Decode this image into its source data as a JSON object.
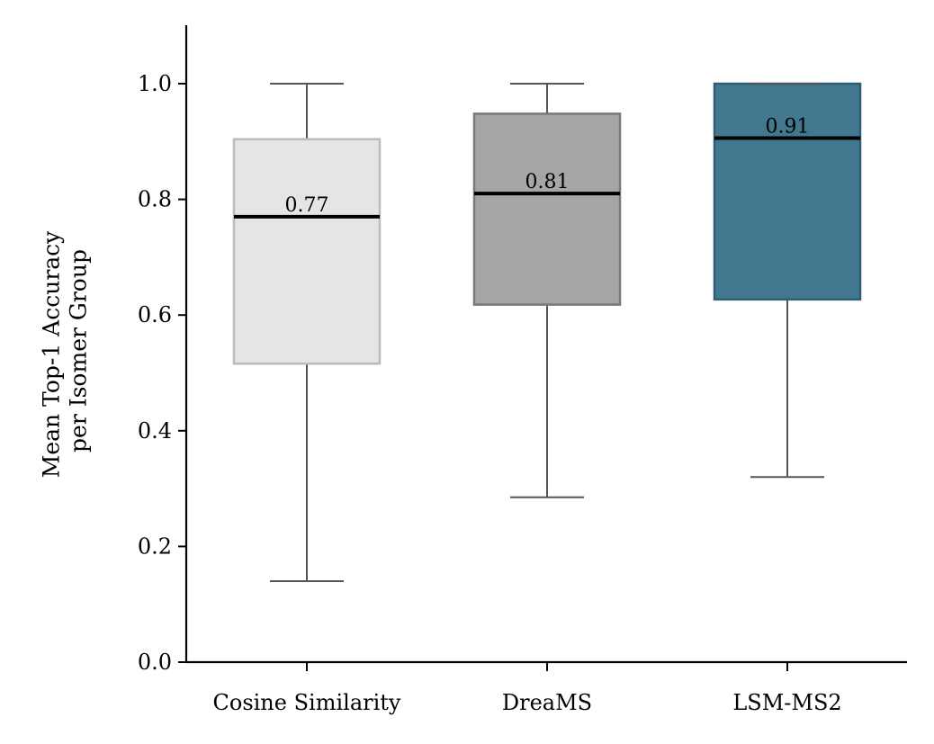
{
  "chart_data": {
    "type": "box",
    "title": "",
    "xlabel": "",
    "ylabel_lines": [
      "Mean Top-1 Accuracy",
      "per Isomer Group"
    ],
    "ylim": [
      0,
      1.1
    ],
    "yticks": [
      0.0,
      0.2,
      0.4,
      0.6,
      0.8,
      1.0
    ],
    "ytick_labels": [
      "0.0",
      "0.2",
      "0.4",
      "0.6",
      "0.8",
      "1.0"
    ],
    "grid": false,
    "categories": [
      "Cosine Similarity",
      "DreaMS",
      "LSM-MS2"
    ],
    "series": [
      {
        "name": "Cosine Similarity",
        "whisker_low": 0.14,
        "q1": 0.516,
        "median": 0.77,
        "q3": 0.904,
        "whisker_high": 1.0,
        "median_label": "0.77",
        "fill": "#e5e5e5",
        "edge": "#bbbbbb",
        "fill_opacity": 1
      },
      {
        "name": "DreaMS",
        "whisker_low": 0.285,
        "q1": 0.618,
        "median": 0.81,
        "q3": 0.948,
        "whisker_high": 1.0,
        "median_label": "0.81",
        "fill": "#a6a6a6",
        "edge": "#777777",
        "fill_opacity": 1
      },
      {
        "name": "LSM-MS2",
        "whisker_low": 0.32,
        "q1": 0.627,
        "median": 0.906,
        "q3": 1.0,
        "whisker_high": 1.0,
        "median_label": "0.91",
        "fill": "#41788f",
        "edge": "#2f5f77",
        "fill_opacity": 1
      }
    ],
    "colors": {
      "median": "#000000",
      "whisker": "#555555",
      "axis": "#000000"
    }
  }
}
